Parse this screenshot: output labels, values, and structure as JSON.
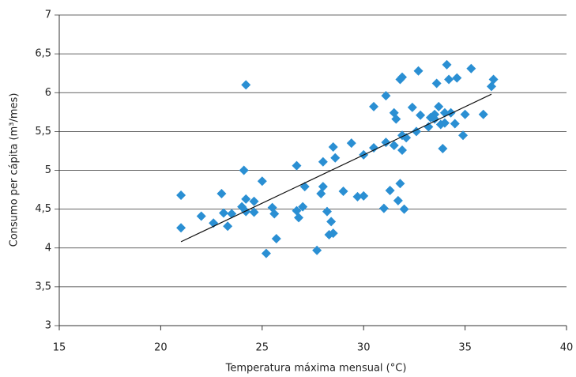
{
  "chart_data": {
    "type": "scatter",
    "x_label": "Temperatura máxima mensual (°C)",
    "y_label": "Consumo per cápita (m³/mes)",
    "color": "#2a8fd3",
    "grid": true,
    "xlim": [
      15,
      40
    ],
    "xticks": [
      15,
      20,
      25,
      30,
      35,
      40
    ],
    "ylim": [
      3,
      7
    ],
    "yticks": [
      3,
      {
        "value": 3.5,
        "label": "3,5"
      },
      4,
      {
        "value": 4.5,
        "label": "4,5"
      },
      5,
      {
        "value": 5.5,
        "label": "5,5"
      },
      6,
      {
        "value": 6.5,
        "label": "6,5"
      },
      7
    ],
    "x": [
      21.0,
      21.0,
      22.0,
      22.6,
      23.0,
      23.1,
      23.3,
      23.5,
      24.0,
      24.1,
      24.2,
      24.2,
      24.2,
      24.6,
      24.6,
      25.0,
      25.2,
      25.5,
      25.6,
      25.7,
      26.7,
      26.7,
      26.8,
      27.0,
      27.1,
      27.7,
      27.9,
      28.0,
      28.0,
      28.2,
      28.3,
      28.4,
      28.5,
      28.5,
      28.6,
      29.0,
      29.4,
      29.7,
      30.0,
      30.0,
      30.5,
      30.5,
      31.0,
      31.1,
      31.1,
      31.3,
      31.5,
      31.5,
      31.6,
      31.7,
      31.8,
      31.8,
      31.9,
      31.9,
      31.9,
      32.0,
      32.1,
      32.4,
      32.6,
      32.7,
      32.8,
      33.2,
      33.3,
      33.5,
      33.5,
      33.6,
      33.7,
      33.8,
      33.9,
      34.0,
      34.0,
      34.1,
      34.2,
      34.3,
      34.5,
      34.6,
      34.9,
      35.0,
      35.3,
      35.9,
      36.3,
      36.4
    ],
    "values": [
      4.68,
      4.26,
      4.41,
      4.32,
      4.7,
      4.45,
      4.28,
      4.44,
      4.53,
      5.0,
      4.63,
      4.47,
      6.1,
      4.6,
      4.46,
      4.86,
      3.93,
      4.52,
      4.44,
      4.12,
      5.06,
      4.48,
      4.39,
      4.53,
      4.79,
      3.97,
      4.7,
      4.79,
      5.11,
      4.47,
      4.17,
      4.34,
      4.19,
      5.3,
      5.16,
      4.73,
      5.35,
      4.66,
      4.67,
      5.2,
      5.82,
      5.29,
      4.51,
      5.96,
      5.36,
      4.74,
      5.32,
      5.74,
      5.66,
      4.61,
      6.17,
      4.83,
      6.2,
      5.45,
      5.26,
      4.5,
      5.42,
      5.81,
      5.5,
      6.28,
      5.71,
      5.56,
      5.68,
      5.66,
      5.72,
      6.12,
      5.82,
      5.59,
      5.28,
      5.61,
      5.74,
      6.36,
      6.17,
      5.74,
      5.6,
      6.19,
      5.45,
      5.72,
      6.31,
      5.72,
      6.08,
      6.17
    ],
    "trend_line": {
      "x": [
        21.0,
        36.3
      ],
      "values": [
        4.08,
        5.98
      ]
    }
  }
}
